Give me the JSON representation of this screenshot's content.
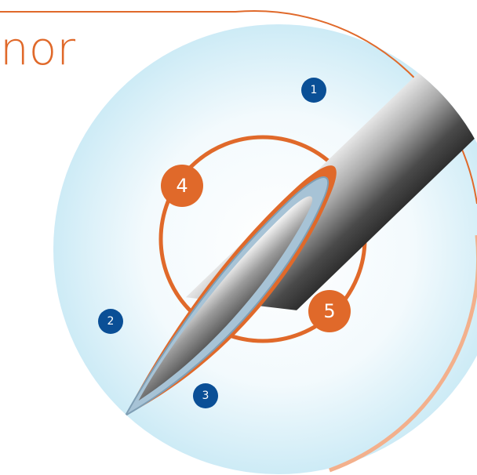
{
  "header": {
    "title": "nor"
  },
  "markers": [
    {
      "label": "1"
    },
    {
      "label": "2"
    },
    {
      "label": "3"
    },
    {
      "label": "4"
    },
    {
      "label": "5"
    }
  ]
}
